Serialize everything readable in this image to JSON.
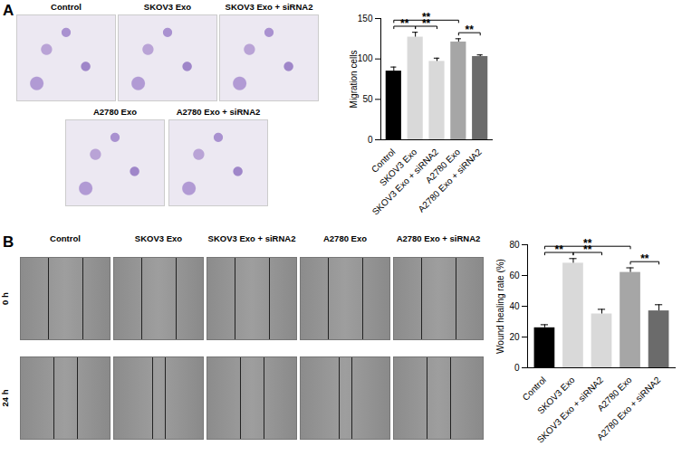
{
  "chart_data": [
    {
      "type": "bar",
      "panel": "A",
      "image_labels": [
        "Control",
        "SKOV3 Exo",
        "SKOV3 Exo + siRNA2",
        "A2780 Exo",
        "A2780 Exo + siRNA2"
      ],
      "y_label": "Migration cells",
      "categories": [
        "Control",
        "SKOV3 Exo",
        "SKOV3 Exo + siRNA2",
        "A2780 Exo",
        "A2780 Exo + siRNA2"
      ],
      "values": [
        85,
        127,
        97,
        121,
        103
      ],
      "error": [
        5,
        6,
        4,
        4,
        2
      ],
      "colors": [
        "#000000",
        "#d9d9d9",
        "#d9d9d9",
        "#a6a6a6",
        "#6b6b6b"
      ],
      "ylim": [
        0,
        150
      ],
      "yticks": [
        0,
        50,
        100,
        150
      ],
      "annotations": [
        {
          "from": "Control",
          "to": "SKOV3 Exo",
          "text": "**"
        },
        {
          "from": "SKOV3 Exo",
          "to": "SKOV3 Exo + siRNA2",
          "text": "**"
        },
        {
          "from": "Control",
          "to": "A2780 Exo",
          "text": "**"
        },
        {
          "from": "A2780 Exo",
          "to": "A2780 Exo + siRNA2",
          "text": "**"
        }
      ]
    },
    {
      "type": "bar",
      "panel": "B",
      "image_labels": [
        "Control",
        "SKOV3 Exo",
        "SKOV3 Exo + siRNA2",
        "A2780 Exo",
        "A2780 Exo + siRNA2"
      ],
      "image_rows": [
        "0 h",
        "24 h"
      ],
      "y_label": "Wound healing rate (%)",
      "categories": [
        "Control",
        "SKOV3 Exo",
        "SKOV3 Exo + siRNA2",
        "A2780 Exo",
        "A2780 Exo + siRNA2"
      ],
      "values": [
        26,
        68,
        35,
        62,
        37
      ],
      "error": [
        2,
        3,
        3,
        3,
        4
      ],
      "colors": [
        "#000000",
        "#d9d9d9",
        "#d9d9d9",
        "#a6a6a6",
        "#6b6b6b"
      ],
      "ylim": [
        0,
        80
      ],
      "yticks": [
        0,
        20,
        40,
        60,
        80
      ],
      "annotations": [
        {
          "from": "Control",
          "to": "SKOV3 Exo",
          "text": "**"
        },
        {
          "from": "SKOV3 Exo",
          "to": "SKOV3 Exo + siRNA2",
          "text": "**"
        },
        {
          "from": "Control",
          "to": "A2780 Exo",
          "text": "**"
        },
        {
          "from": "A2780 Exo",
          "to": "A2780 Exo + siRNA2",
          "text": "**"
        }
      ]
    }
  ]
}
